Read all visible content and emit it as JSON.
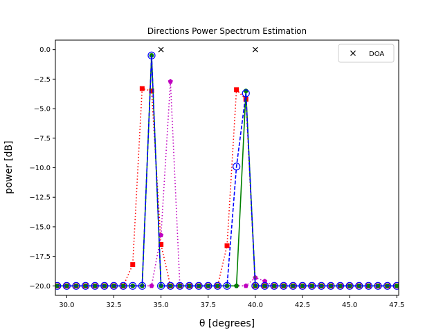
{
  "chart_data": {
    "type": "line",
    "title": "Directions Power Spectrum Estimation",
    "xlabel": "θ [degrees]",
    "ylabel": "power [dB]",
    "xlim": [
      29.4,
      47.6
    ],
    "ylim": [
      -20.8,
      0.8
    ],
    "xticks": [
      30.0,
      32.5,
      35.0,
      37.5,
      40.0,
      42.5,
      45.0,
      47.5
    ],
    "xtick_labels": [
      "30.0",
      "32.5",
      "35.0",
      "37.5",
      "40.0",
      "42.5",
      "45.0",
      "47.5"
    ],
    "yticks": [
      0.0,
      -2.5,
      -5.0,
      -7.5,
      -10.0,
      -12.5,
      -15.0,
      -17.5,
      -20.0
    ],
    "ytick_labels": [
      "0.0",
      "−2.5",
      "−5.0",
      "−7.5",
      "−10.0",
      "−12.5",
      "−15.0",
      "−17.5",
      "−20.0"
    ],
    "grid": false,
    "legend_position": "top-right",
    "x": [
      29.5,
      30.0,
      30.5,
      31.0,
      31.5,
      32.0,
      32.5,
      33.0,
      33.5,
      34.0,
      34.5,
      35.0,
      35.5,
      36.0,
      36.5,
      37.0,
      37.5,
      38.0,
      38.5,
      39.0,
      39.5,
      40.0,
      40.5,
      41.0,
      41.5,
      42.0,
      42.5,
      43.0,
      43.5,
      44.0,
      44.5,
      45.0,
      45.5,
      46.0,
      46.5,
      47.0,
      47.5
    ],
    "series": [
      {
        "color": "#ff0000",
        "linestyle": "dotted",
        "marker": "square",
        "values": [
          -20,
          -20,
          -20,
          -20,
          -20,
          -20,
          -20,
          -20,
          -18.2,
          -3.3,
          -3.5,
          -16.5,
          -20,
          -20,
          -20,
          -20,
          -20,
          -20,
          -16.6,
          -3.4,
          -4.2,
          -20,
          -20,
          -20,
          -20,
          -20,
          -20,
          -20,
          -20,
          -20,
          -20,
          -20,
          -20,
          -20,
          -20,
          -20,
          -20
        ]
      },
      {
        "color": "#bf00bf",
        "linestyle": "dotted",
        "marker": "pentagon",
        "values": [
          -20,
          -20,
          -20,
          -20,
          -20,
          -20,
          -20,
          -20,
          -20,
          -20,
          -20,
          -15.7,
          -2.7,
          -20,
          -20,
          -20,
          -20,
          -20,
          -20,
          -20,
          -20,
          -19.3,
          -19.6,
          -20,
          -20,
          -20,
          -20,
          -20,
          -20,
          -20,
          -20,
          -20,
          -20,
          -20,
          -20,
          -20,
          -20
        ]
      },
      {
        "color": "#008000",
        "linestyle": "solid",
        "marker": "circle",
        "values": [
          -20,
          -20,
          -20,
          -20,
          -20,
          -20,
          -20,
          -20,
          -20,
          -20,
          -0.5,
          -20,
          -20,
          -20,
          -20,
          -20,
          -20,
          -20,
          -20,
          -20,
          -3.5,
          -20,
          -20,
          -20,
          -20,
          -20,
          -20,
          -20,
          -20,
          -20,
          -20,
          -20,
          -20,
          -20,
          -20,
          -20,
          -20
        ]
      },
      {
        "color": "#0000ff",
        "linestyle": "dashed",
        "marker": "open-circle",
        "values": [
          -20,
          -20,
          -20,
          -20,
          -20,
          -20,
          -20,
          -20,
          -20,
          -20,
          -0.5,
          -20,
          -20,
          -20,
          -20,
          -20,
          -20,
          -20,
          -20,
          -9.9,
          -3.7,
          -20,
          -20,
          -20,
          -20,
          -20,
          -20,
          -20,
          -20,
          -20,
          -20,
          -20,
          -20,
          -20,
          -20,
          -20,
          -20
        ]
      }
    ],
    "doa": {
      "name": "DOA",
      "marker": "x",
      "color": "#000000",
      "x": [
        35.0,
        40.0
      ],
      "y": [
        0.0,
        0.0
      ]
    }
  }
}
